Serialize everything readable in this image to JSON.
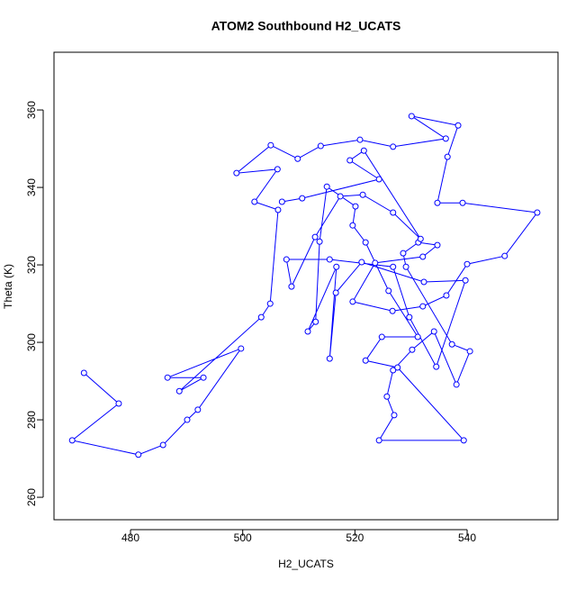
{
  "chart_data": {
    "type": "line",
    "title": "ATOM2 Southbound H2_UCATS",
    "x_label": "H2_UCATS",
    "y_label": "Theta (K)",
    "color": "#0000ff",
    "markers": true,
    "x": [
      471.7,
      477.9,
      469.6,
      481.4,
      485.8,
      490.1,
      492.0,
      499.7,
      486.6,
      493.0,
      488.7,
      503.3,
      504.9,
      506.3,
      502.1,
      506.2,
      498.9,
      505.0,
      509.8,
      513.9,
      520.9,
      526.8,
      536.2,
      530.1,
      538.4,
      536.5,
      534.7,
      539.2,
      552.5,
      546.7,
      540.0,
      536.3,
      532.1,
      526.7,
      519.6,
      523.6,
      532.1,
      534.7,
      531.3,
      528.6,
      529.1,
      537.3,
      540.5,
      538.1,
      534.1,
      530.2,
      526.8,
      525.7,
      527.0,
      524.3,
      539.4,
      527.6,
      521.9,
      524.8,
      531.2,
      526.0,
      521.9,
      519.6,
      520.1,
      515.0,
      513.7,
      513.0,
      511.6,
      516.7,
      515.5,
      516.6,
      521.2,
      532.3,
      539.7,
      534.5,
      529.7,
      526.8,
      515.5,
      507.8,
      508.7,
      512.9,
      517.4,
      521.4,
      526.8,
      531.7,
      521.6,
      519.1,
      524.3,
      510.6,
      507.0
    ],
    "values": [
      292.1,
      284.2,
      274.7,
      271.0,
      273.5,
      280.0,
      282.6,
      298.4,
      290.9,
      290.9,
      287.4,
      306.5,
      310.0,
      334.2,
      336.3,
      344.7,
      343.7,
      350.9,
      347.4,
      350.7,
      352.3,
      350.5,
      352.6,
      358.4,
      356.0,
      347.9,
      336.0,
      336.0,
      333.5,
      322.3,
      320.2,
      312.1,
      309.3,
      308.1,
      310.5,
      320.5,
      322.1,
      325.1,
      325.8,
      323.0,
      319.5,
      299.5,
      297.7,
      289.1,
      302.8,
      298.1,
      292.8,
      286.0,
      281.2,
      274.7,
      274.7,
      293.5,
      295.3,
      301.4,
      301.4,
      313.3,
      325.8,
      330.2,
      335.1,
      340.2,
      326.0,
      305.3,
      302.8,
      319.5,
      295.8,
      312.8,
      320.7,
      315.6,
      316.0,
      293.7,
      306.5,
      319.5,
      321.4,
      321.4,
      314.4,
      327.2,
      337.7,
      338.1,
      333.5,
      326.7,
      349.5,
      347.0,
      342.1,
      337.2,
      336.3
    ],
    "xlim": [
      466.36,
      556.2
    ],
    "xticks": [
      480,
      500,
      520,
      540
    ],
    "ylim": [
      254.2,
      374.9
    ],
    "yticks": [
      260,
      280,
      300,
      320,
      340,
      360
    ]
  }
}
